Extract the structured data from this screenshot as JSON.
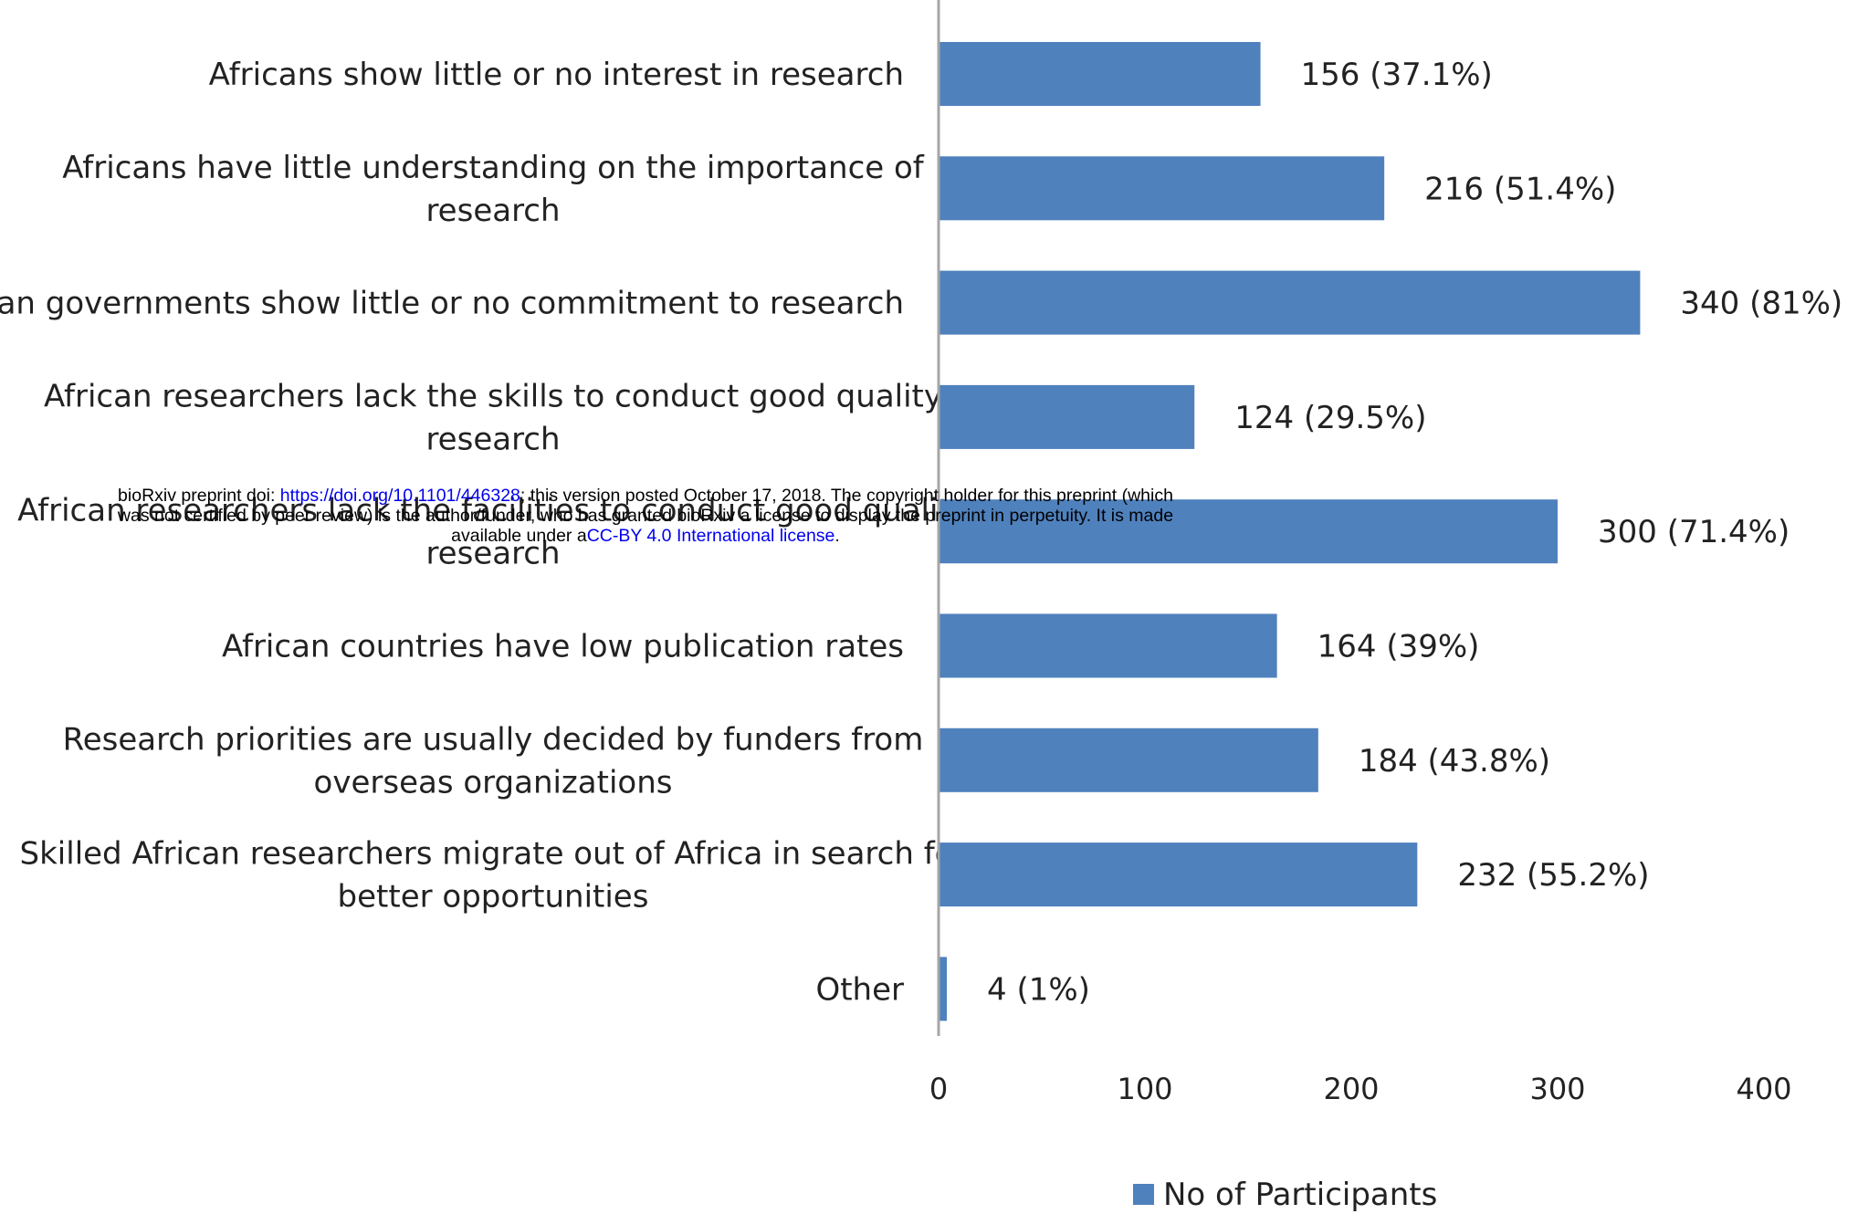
{
  "chart_data": {
    "type": "bar",
    "orientation": "horizontal",
    "categories": [
      [
        "Africans show little or no interest in research"
      ],
      [
        "Africans have little understanding on the importance of",
        "research"
      ],
      [
        "African governments show little or no commitment to research"
      ],
      [
        "African researchers lack the skills to conduct good quality",
        "research"
      ],
      [
        "African researchers lack the facilities to conduct good quality",
        "research"
      ],
      [
        "African countries have low publication rates"
      ],
      [
        "Research priorities are usually decided by funders from",
        "overseas organizations"
      ],
      [
        "Skilled African researchers migrate out of Africa in search for",
        "better opportunities"
      ],
      [
        "Other"
      ]
    ],
    "series": [
      {
        "name": "No of Participants",
        "values": [
          156,
          216,
          340,
          124,
          300,
          164,
          184,
          232,
          4
        ],
        "labels": [
          "156 (37.1%)",
          "216 (51.4%)",
          "340 (81%)",
          "124 (29.5%)",
          "300 (71.4%)",
          "164 (39%)",
          "184 (43.8%)",
          "232 (55.2%)",
          "4 (1%)"
        ]
      }
    ],
    "xlim": [
      0,
      400
    ],
    "xticks": [
      "0",
      "100",
      "200",
      "300",
      "400"
    ],
    "grid": false,
    "legend_position": "bottom-center",
    "colors": {
      "bar": "#4f81bd",
      "axis": "#a6a6a6"
    }
  },
  "watermark": {
    "prefix": "bioRxiv preprint doi: ",
    "doi_link": "https://doi.org/10.1101/446328",
    "middle": "; this version posted October 17, 2018. The copyright holder for this preprint (which",
    "line2": "was not certified by peer review) is the author/funder, who has granted bioRxiv a license to display the preprint in perpetuity. It is made",
    "line3_prefix": "available under a",
    "license_link": "CC-BY 4.0 International license",
    "line3_suffix": "."
  }
}
